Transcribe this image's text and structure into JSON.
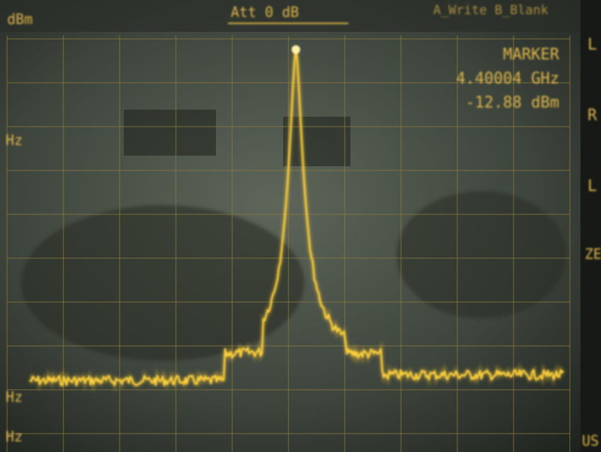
{
  "screen": {
    "top_left": "dBm",
    "attenuation": "Att 0 dB",
    "top_right": "A_Write B_Blank",
    "marker": {
      "label": "MARKER",
      "frequency": "4.40004 GHz",
      "level": "-12.88 dBm"
    },
    "left_labels": [
      "Hz",
      "Hz",
      "Hz"
    ],
    "right_labels": [
      "L",
      "R",
      "L",
      "ZE",
      "US"
    ]
  }
}
